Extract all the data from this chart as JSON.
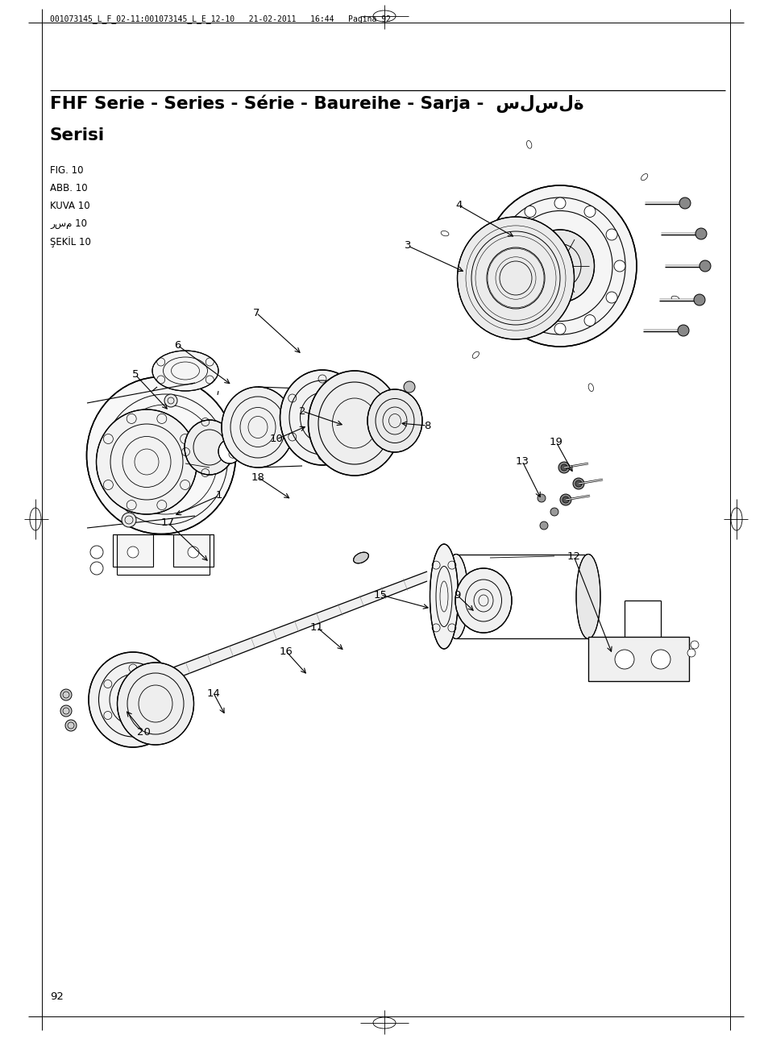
{
  "page_header": "001073145_L_F_02-11:001073145_L_E_12-10   21-02-2011   16:44   Pagina 92",
  "title_line1": "FHF Serie - Series - Série - Baureihe - Sarja -  سلسلة",
  "title_line2": "Serisi",
  "fig_labels": [
    "FIG. 10",
    "ABB. 10",
    "KUVA 10",
    "رسم 10",
    "ŞEKİL 10"
  ],
  "page_number": "92",
  "bg_color": "#ffffff",
  "text_color": "#000000",
  "figsize": [
    9.54,
    12.89
  ],
  "dpi": 100
}
